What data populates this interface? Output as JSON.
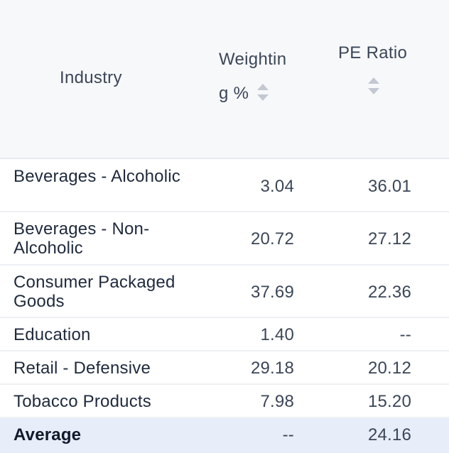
{
  "header": {
    "industry": "Industry",
    "weighting_line1": "Weightin",
    "weighting_line2": "g %",
    "pe_ratio": "PE Ratio"
  },
  "rows": [
    {
      "industry": "Beverages - Alcoholic",
      "weighting": "3.04",
      "pe": "36.01"
    },
    {
      "industry": "Beverages - Non-Alcoholic",
      "weighting": "20.72",
      "pe": "27.12"
    },
    {
      "industry": "Consumer Packaged Goods",
      "weighting": "37.69",
      "pe": "22.36"
    },
    {
      "industry": "Education",
      "weighting": "1.40",
      "pe": "--"
    },
    {
      "industry": "Retail - Defensive",
      "weighting": "29.18",
      "pe": "20.12"
    },
    {
      "industry": "Tobacco Products",
      "weighting": "7.98",
      "pe": "15.20"
    }
  ],
  "average": {
    "label": "Average",
    "weighting": "--",
    "pe": "24.16"
  },
  "icons": {
    "sort": "sort-icon"
  },
  "colors": {
    "header_bg": "#f7f8fa",
    "average_bg": "#e7edf9",
    "sort_icon": "#c3c8d2"
  }
}
